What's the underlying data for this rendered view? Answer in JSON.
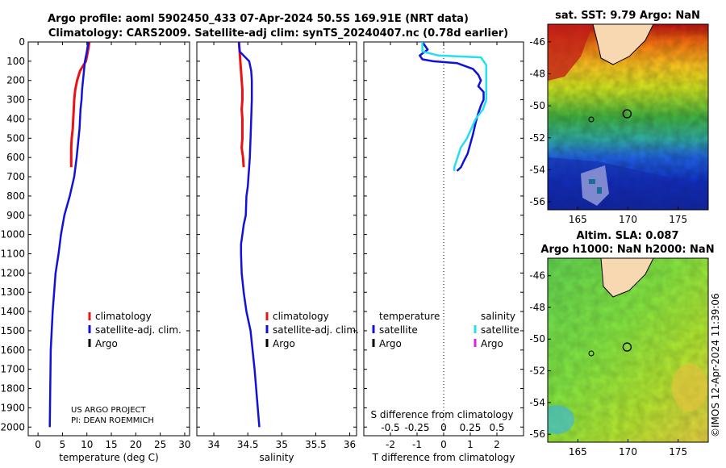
{
  "header": {
    "line1": "Argo profile: aoml 5902450_433 07-Apr-2024 50.5S 169.91E (NRT data)",
    "line2": "Climatology: CARS2009. Satellite-adj clim: synTS_20240407.nc (0.78d earlier)"
  },
  "colors": {
    "climatology": "#ee1111",
    "satellite_adj": "#1111dd",
    "argo": "#000000",
    "sat_salinity": "#22e0f0",
    "argo_salinity": "#e020e0"
  },
  "credit": {
    "line1": "US ARGO PROJECT",
    "line2": "PI: DEAN ROEMMICH"
  },
  "stamp": "©IMOS 12-Apr-2024 11:39:06",
  "chart_data": [
    {
      "type": "line",
      "id": "temperature",
      "xlabel": "temperature (deg C)",
      "ylabel": "",
      "xlim": [
        -2,
        31
      ],
      "ylim": [
        2050,
        0
      ],
      "xticks": [
        0,
        5,
        10,
        15,
        20,
        25,
        30
      ],
      "yticks": [
        0,
        100,
        200,
        300,
        400,
        500,
        600,
        700,
        800,
        900,
        1000,
        1100,
        1200,
        1300,
        1400,
        1500,
        1600,
        1700,
        1800,
        1900,
        2000
      ],
      "legend": [
        "climatology",
        "satellite-adj. clim.",
        "Argo"
      ],
      "series": [
        {
          "name": "climatology",
          "x": [
            10.5,
            10.2,
            9.8,
            8.6,
            8.0,
            7.6,
            7.4,
            7.3,
            7.2,
            7.1,
            6.9,
            6.8,
            6.8
          ],
          "y": [
            0,
            50,
            100,
            150,
            200,
            250,
            300,
            350,
            400,
            450,
            500,
            550,
            650
          ]
        },
        {
          "name": "satellite-adj. clim.",
          "x": [
            10.3,
            10.0,
            9.6,
            9.4,
            9.2,
            9.0,
            8.9,
            8.7,
            8.6,
            8.5,
            8.3,
            8.1,
            7.9,
            7.4,
            6.5,
            5.4,
            4.7,
            4.2,
            3.6,
            3.3,
            3.0,
            2.8,
            2.6,
            2.5,
            2.4
          ],
          "y": [
            0,
            50,
            100,
            150,
            200,
            250,
            300,
            350,
            400,
            450,
            500,
            550,
            600,
            700,
            800,
            900,
            1000,
            1100,
            1200,
            1300,
            1400,
            1500,
            1600,
            1800,
            2000
          ]
        }
      ]
    },
    {
      "type": "line",
      "id": "salinity",
      "xlabel": "salinity",
      "ylabel": "",
      "xlim": [
        33.75,
        36.1
      ],
      "ylim": [
        2050,
        0
      ],
      "xticks": [
        34,
        34.5,
        35,
        35.5,
        36
      ],
      "xticklabels": [
        "34",
        "34.5",
        "35",
        "35.5",
        "36"
      ],
      "legend": [
        "climatology",
        "satellite-adj. clim.",
        "Argo"
      ],
      "series": [
        {
          "name": "climatology",
          "x": [
            34.37,
            34.38,
            34.39,
            34.4,
            34.41,
            34.42,
            34.42,
            34.41,
            34.42,
            34.42,
            34.42,
            34.41,
            34.43,
            34.44
          ],
          "y": [
            0,
            50,
            100,
            150,
            200,
            250,
            300,
            350,
            400,
            450,
            500,
            550,
            600,
            650
          ]
        },
        {
          "name": "satellite-adj. clim.",
          "x": [
            34.37,
            34.38,
            34.52,
            34.55,
            34.56,
            34.56,
            34.55,
            34.54,
            34.53,
            34.52,
            34.51,
            34.5,
            34.48,
            34.47,
            34.44,
            34.42,
            34.4,
            34.4,
            34.41,
            34.44,
            34.48,
            34.54,
            34.6,
            34.67
          ],
          "y": [
            0,
            50,
            100,
            150,
            200,
            300,
            400,
            500,
            600,
            650,
            700,
            750,
            800,
            900,
            950,
            1000,
            1050,
            1100,
            1200,
            1300,
            1400,
            1500,
            1700,
            2000
          ]
        }
      ]
    },
    {
      "type": "line",
      "id": "difference",
      "xlabel": "T difference from climatology",
      "top_xlabel": "S difference from climatology",
      "ylabel": "",
      "xlim": [
        -3,
        3
      ],
      "ylim": [
        2050,
        0
      ],
      "xticks": [
        -2,
        -1,
        0,
        1,
        2
      ],
      "top_xticks": [
        -0.5,
        -0.25,
        0,
        0.25,
        0.5
      ],
      "top_xticklabels": [
        "-0.5",
        "-0.25",
        "0",
        "0.25",
        "0.5"
      ],
      "legend_left_title": "temperature",
      "legend_right_title": "salinity",
      "legend_left": [
        "satellite",
        "Argo"
      ],
      "legend_right": [
        "satellite",
        "Argo"
      ],
      "series": [
        {
          "name": "temperature satellite",
          "x": [
            -0.8,
            -0.6,
            -0.9,
            -0.8,
            -0.4,
            0.5,
            1.1,
            1.3,
            1.4,
            1.3,
            1.5,
            1.5,
            1.4,
            1.3,
            1.2,
            1.1,
            1.0,
            0.9,
            0.75,
            0.65,
            0.5
          ],
          "y": [
            0,
            40,
            70,
            90,
            100,
            110,
            140,
            170,
            200,
            230,
            260,
            300,
            330,
            370,
            420,
            480,
            530,
            580,
            620,
            650,
            670
          ]
        },
        {
          "name": "salinity satellite",
          "x": [
            -0.2,
            -0.2,
            -0.05,
            0.35,
            0.4,
            0.4,
            0.4,
            0.37,
            0.3,
            0.26,
            0.22,
            0.16,
            0.13,
            0.1,
            0.1
          ],
          "y": [
            0,
            50,
            70,
            80,
            120,
            200,
            300,
            350,
            400,
            450,
            500,
            550,
            600,
            650,
            670
          ]
        }
      ]
    },
    {
      "type": "heatmap",
      "id": "sst_map",
      "title": "sat. SST: 9.79 Argo: NaN",
      "xticks": [
        165,
        170,
        175
      ],
      "yticks": [
        -46,
        -48,
        -50,
        -52,
        -54,
        -56
      ],
      "xlim": [
        162,
        178
      ],
      "ylim": [
        -56.5,
        -44.9
      ],
      "argo_position": [
        169.91,
        -50.5
      ]
    },
    {
      "type": "heatmap",
      "id": "sla_map",
      "title": "Altim. SLA: 0.087",
      "subtitle": "Argo h1000: NaN h2000: NaN",
      "xticks": [
        165,
        170,
        175
      ],
      "yticks": [
        -46,
        -48,
        -50,
        -52,
        -54,
        -56
      ],
      "xlim": [
        162,
        178
      ],
      "ylim": [
        -56.5,
        -44.9
      ],
      "argo_position": [
        169.91,
        -50.5
      ]
    }
  ]
}
